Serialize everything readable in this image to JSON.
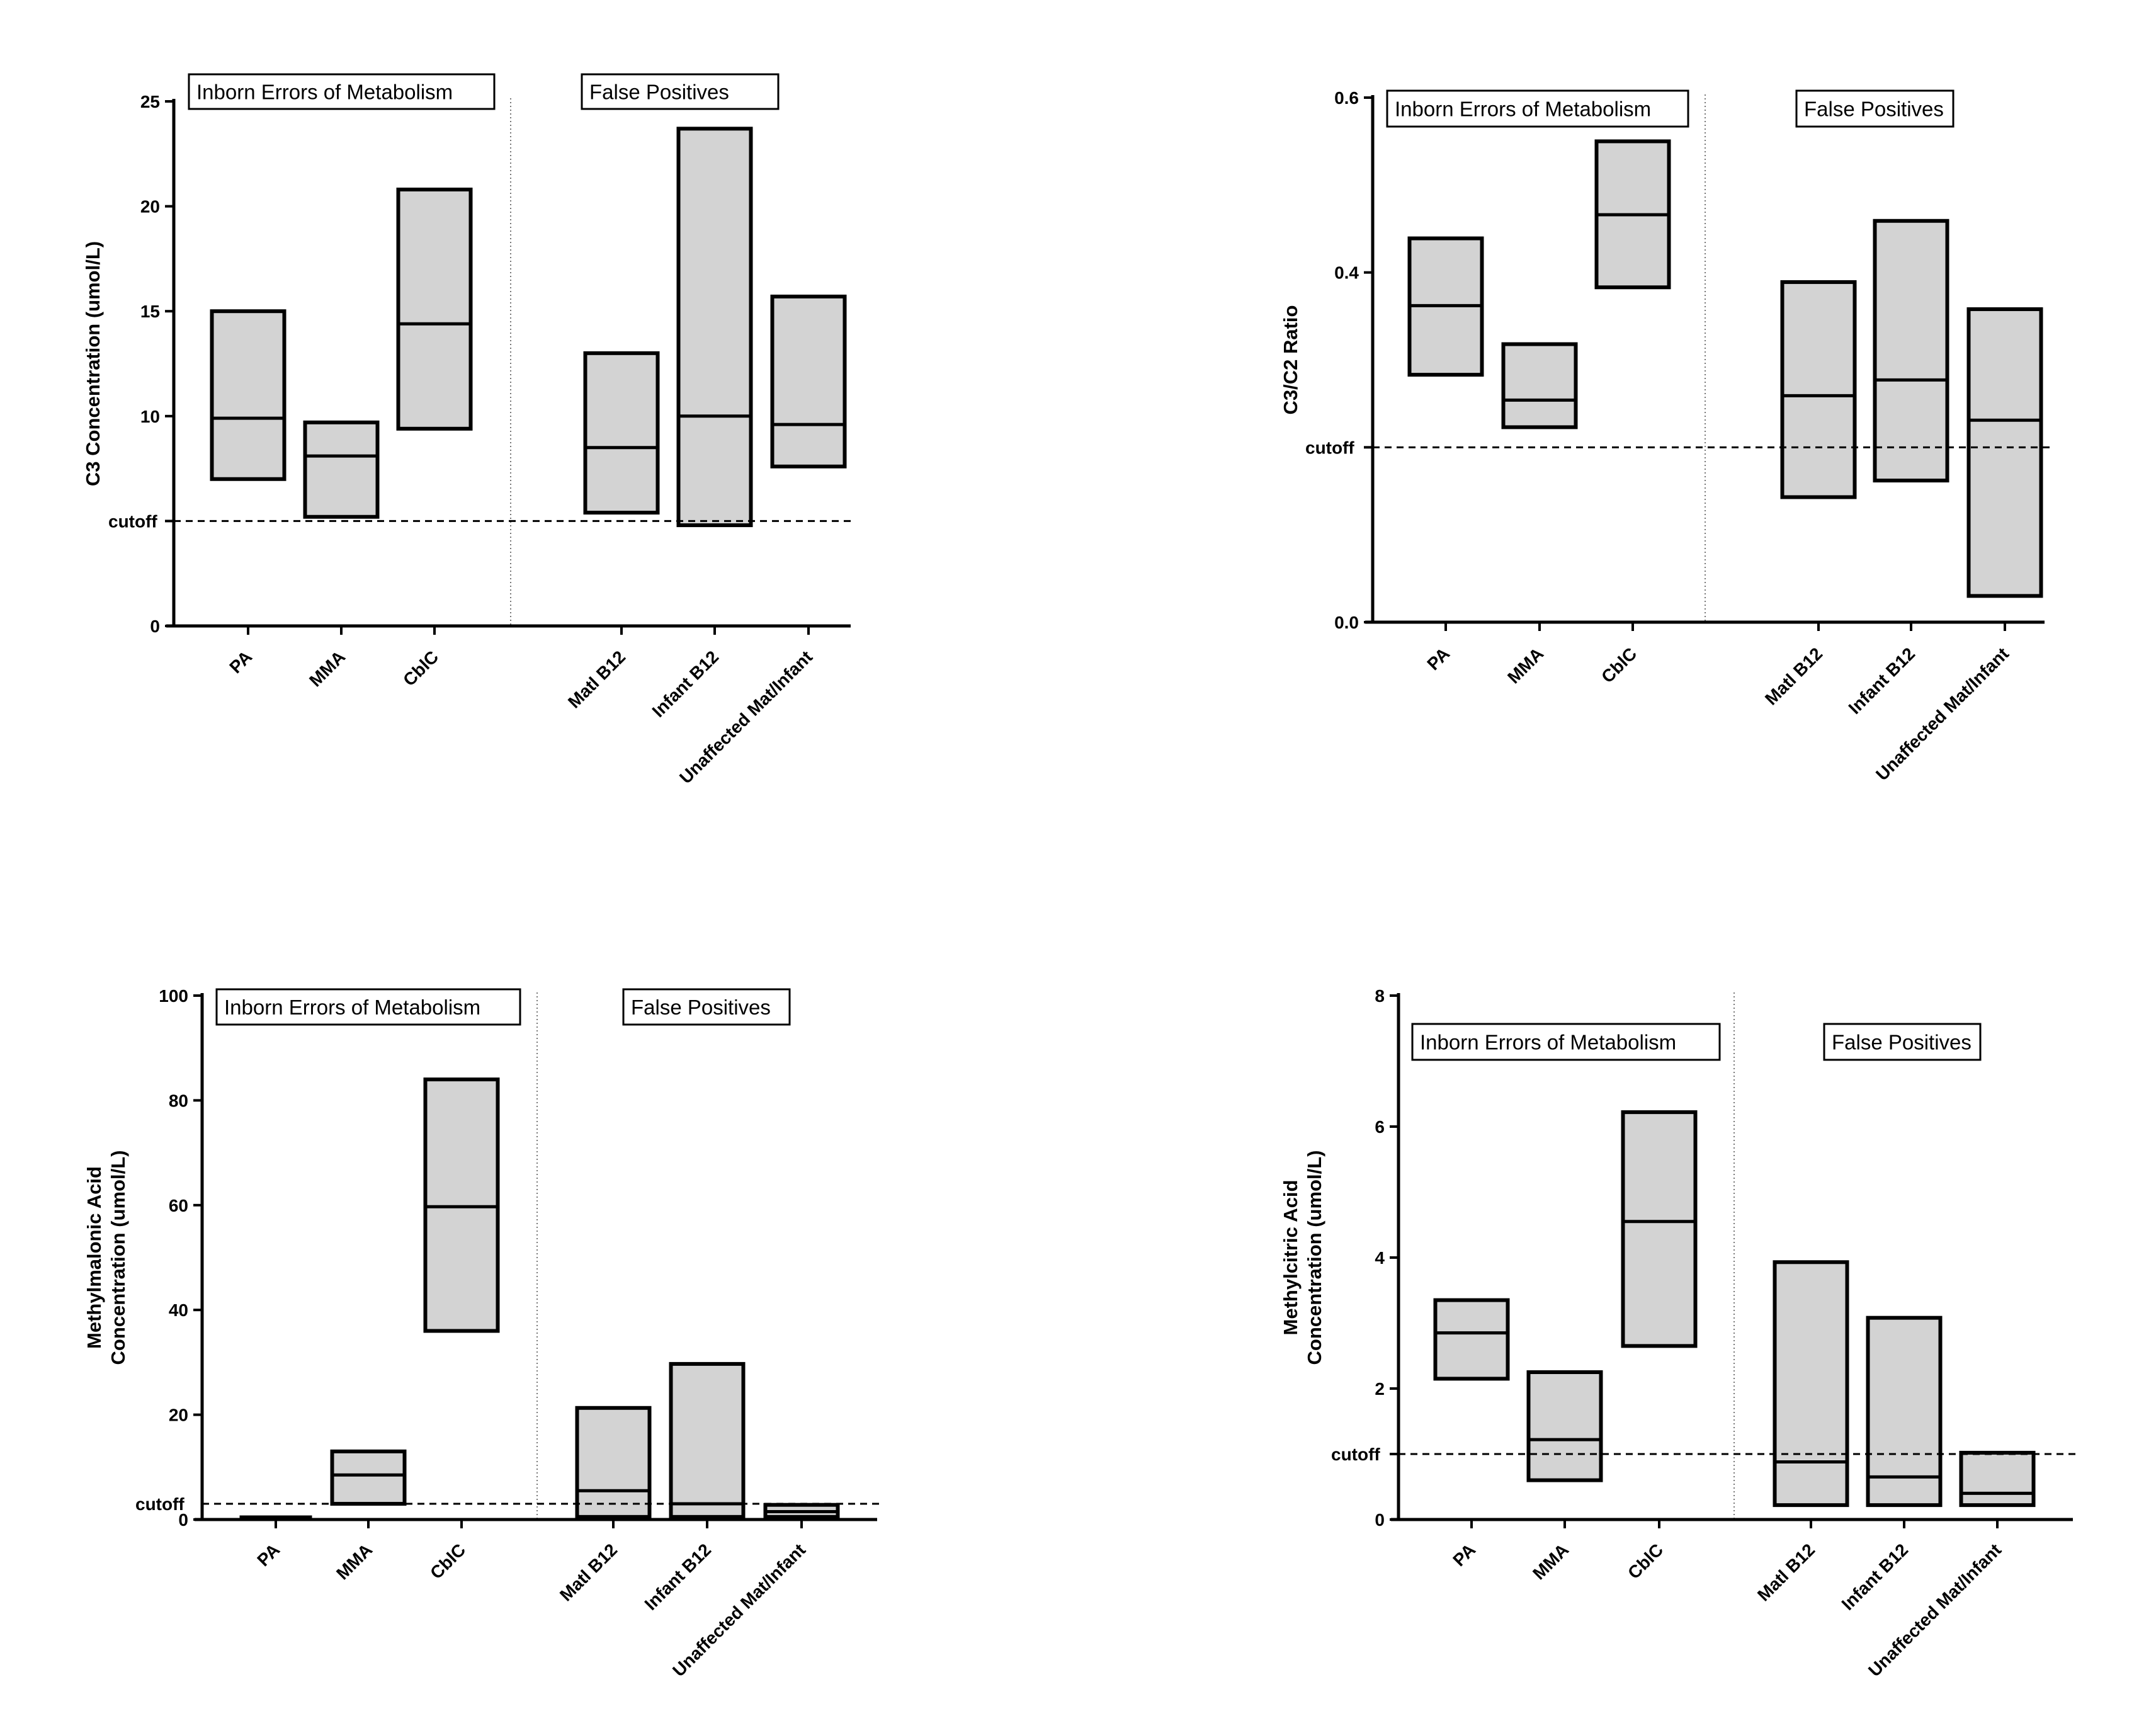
{
  "chart_data": [
    {
      "type": "floating-bar",
      "ylabel": [
        "C3 Concentration (umol/L)"
      ],
      "ylim": [
        0,
        25
      ],
      "yticks": [
        0,
        5,
        10,
        15,
        20,
        25
      ],
      "ytick_labels": [
        "0",
        "",
        "10",
        "15",
        "20",
        "25"
      ],
      "cutoff": 5,
      "cutoff_label": "cutoff",
      "group_labels": [
        "Inborn Errors of Metabolism",
        "False Positives"
      ],
      "categories": [
        "PA",
        "MMA",
        "CblC",
        "Matl B12",
        "Infant B12",
        "Unaffected Mat/Infant"
      ],
      "boxes": [
        {
          "min": 7.0,
          "median": 9.9,
          "max": 15.0
        },
        {
          "min": 5.2,
          "median": 8.1,
          "max": 9.7
        },
        {
          "min": 9.4,
          "median": 14.4,
          "max": 20.8
        },
        {
          "min": 5.4,
          "median": 8.5,
          "max": 13.0
        },
        {
          "min": 4.8,
          "median": 10.0,
          "max": 23.7
        },
        {
          "min": 7.6,
          "median": 9.6,
          "max": 15.7
        }
      ]
    },
    {
      "type": "floating-bar",
      "ylabel": [
        "C3/C2 Ratio"
      ],
      "ylim": [
        0,
        0.6
      ],
      "yticks": [
        0,
        0.2,
        0.4,
        0.6
      ],
      "ytick_labels": [
        "0.0",
        "",
        "0.4",
        "0.6"
      ],
      "cutoff": 0.2,
      "cutoff_label": "cutoff",
      "group_labels": [
        "Inborn Errors of Metabolism",
        "False Positives"
      ],
      "categories": [
        "PA",
        "MMA",
        "CblC",
        "Matl B12",
        "Infant B12",
        "Unaffected Mat/Infant"
      ],
      "boxes": [
        {
          "min": 0.283,
          "median": 0.362,
          "max": 0.439
        },
        {
          "min": 0.223,
          "median": 0.254,
          "max": 0.318
        },
        {
          "min": 0.383,
          "median": 0.466,
          "max": 0.55
        },
        {
          "min": 0.143,
          "median": 0.259,
          "max": 0.389
        },
        {
          "min": 0.162,
          "median": 0.277,
          "max": 0.459
        },
        {
          "min": 0.03,
          "median": 0.231,
          "max": 0.358
        }
      ]
    },
    {
      "type": "floating-bar",
      "ylabel": [
        "Methylmalonic Acid",
        "Concentration (umol/L)"
      ],
      "ylim": [
        0,
        100
      ],
      "yticks": [
        0,
        20,
        40,
        60,
        80,
        100
      ],
      "ytick_labels": [
        "0",
        "20",
        "40",
        "60",
        "80",
        "100"
      ],
      "cutoff": 3,
      "cutoff_label": "cutoff",
      "group_labels": [
        "Inborn Errors of Metabolism",
        "False Positives"
      ],
      "categories": [
        "PA",
        "MMA",
        "CblC",
        "Matl B12",
        "Infant B12",
        "Unaffected Mat/Infant"
      ],
      "boxes": [
        {
          "min": 0,
          "median": 0,
          "max": 0.3,
          "flat": true
        },
        {
          "min": 3.0,
          "median": 8.5,
          "max": 13.0
        },
        {
          "min": 36.0,
          "median": 59.7,
          "max": 84.0
        },
        {
          "min": 0.5,
          "median": 5.5,
          "max": 21.3
        },
        {
          "min": 0.5,
          "median": 3.0,
          "max": 29.7
        },
        {
          "min": 0.5,
          "median": 1.5,
          "max": 2.8
        }
      ]
    },
    {
      "type": "floating-bar",
      "ylabel": [
        "Methylcitric Acid",
        "Concentration (umol/L)"
      ],
      "ylim": [
        0,
        8
      ],
      "yticks": [
        0,
        1,
        2,
        4,
        6,
        8
      ],
      "ytick_labels": [
        "0",
        "",
        "2",
        "4",
        "6",
        "8"
      ],
      "cutoff": 1,
      "cutoff_label": "cutoff",
      "group_labels": [
        "Inborn Errors of Metabolism",
        "False Positives"
      ],
      "categories": [
        "PA",
        "MMA",
        "CblC",
        "Matl B12",
        "Infant B12",
        "Unaffected Mat/Infant"
      ],
      "boxes": [
        {
          "min": 2.15,
          "median": 2.85,
          "max": 3.35
        },
        {
          "min": 0.6,
          "median": 1.22,
          "max": 2.25
        },
        {
          "min": 2.65,
          "median": 4.55,
          "max": 6.22
        },
        {
          "min": 0.22,
          "median": 0.88,
          "max": 3.93
        },
        {
          "min": 0.22,
          "median": 0.65,
          "max": 3.08
        },
        {
          "min": 0.22,
          "median": 0.4,
          "max": 1.02
        }
      ]
    }
  ]
}
